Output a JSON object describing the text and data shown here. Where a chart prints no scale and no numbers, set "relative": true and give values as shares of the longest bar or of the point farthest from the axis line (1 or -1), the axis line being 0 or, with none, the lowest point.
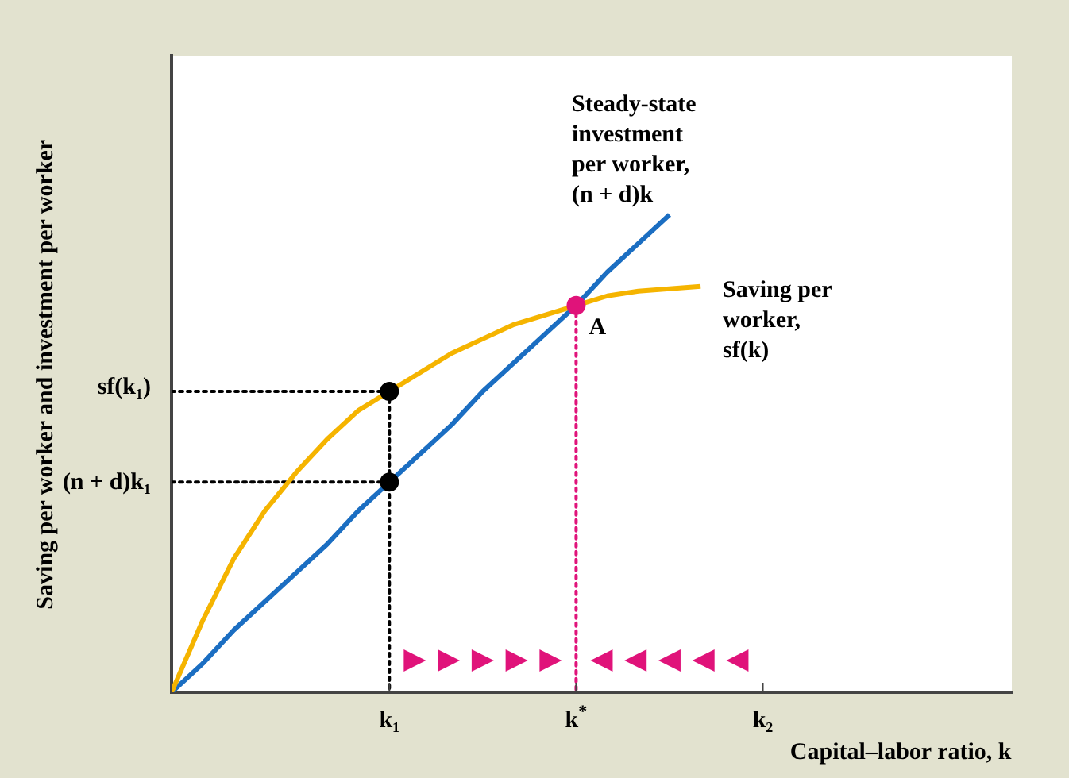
{
  "chart_data": {
    "type": "line",
    "relative": true,
    "xlabel": "Capital–labor ratio, k",
    "ylabel": "Saving per worker and investment per worker",
    "categories": [
      null,
      null,
      null,
      null,
      null,
      null,
      null,
      "k₁",
      null,
      null,
      null,
      null,
      null,
      "k$^{*}$",
      null,
      null,
      null,
      null,
      null,
      "k₂",
      null,
      null,
      null,
      null,
      null,
      null,
      null,
      null
    ],
    "series": [
      {
        "color": "#f5b400",
        "marker": "none",
        "values": [
          0,
          0.15,
          0.28,
          0.38,
          0.46,
          0.53,
          0.59,
          0.63,
          0.67,
          0.71,
          0.74,
          0.77,
          0.79,
          0.81,
          0.83,
          0.84,
          0.845,
          0.85,
          null,
          null,
          null,
          null,
          null,
          null,
          null,
          null,
          null,
          null
        ]
      },
      {
        "color": "#1b6ec2",
        "marker": "none",
        "values": [
          0,
          0.06,
          0.13,
          0.19,
          0.25,
          0.31,
          0.38,
          0.44,
          0.5,
          0.56,
          0.63,
          0.69,
          0.75,
          0.81,
          0.88,
          0.94,
          1,
          null,
          null,
          null,
          null,
          null,
          null,
          null,
          null,
          null,
          null,
          null
        ]
      },
      {
        "color": "#000000",
        "marker": "none",
        "line_style": "dotted",
        "values": [
          0.63,
          0.63,
          0.63,
          0.63,
          0.63,
          0.63,
          0.63,
          0.63,
          null,
          null,
          null,
          null,
          null,
          null,
          null,
          null,
          null,
          null,
          null,
          null,
          null,
          null,
          null,
          null,
          null,
          null,
          null,
          null
        ]
      },
      {
        "color": "#000000",
        "marker": "none",
        "line_style": "dotted",
        "values": [
          0.44,
          0.44,
          0.44,
          0.44,
          0.44,
          0.44,
          0.44,
          0.44,
          null,
          null,
          null,
          null,
          null,
          null,
          null,
          null,
          null,
          null,
          null,
          null,
          null,
          null,
          null,
          null,
          null,
          null,
          null,
          null
        ]
      },
      {
        "color": "#000000",
        "marker": "none",
        "line_style": "dotted",
        "x": [
          "k₁",
          "k₁"
        ],
        "values": [
          0.63,
          0
        ]
      },
      {
        "color": "#e0137a",
        "marker": "none",
        "line_style": "dotted",
        "x": [
          "k$^{*}$",
          "k$^{*}$"
        ],
        "values": [
          0.81,
          0
        ]
      },
      {
        "type": "scatter",
        "color": "#000000",
        "marker": "circle",
        "x": [
          "k₁",
          "k₁"
        ],
        "values": [
          0.63,
          0.44
        ]
      },
      {
        "type": "scatter",
        "color": "#e0137a",
        "marker": "circle",
        "x": [
          "k$^{*}$"
        ],
        "values": [
          0.81
        ]
      }
    ],
    "annotations": [
      "Steady-state\ninvestment\nper worker,\n(n + d)k",
      "Saving per\nworker,\nsf(k)",
      {
        "text": "A",
        "x": "k$^{*}$",
        "y": 0.81
      },
      "sf(k₁)",
      "(n + d)k₁"
    ]
  }
}
